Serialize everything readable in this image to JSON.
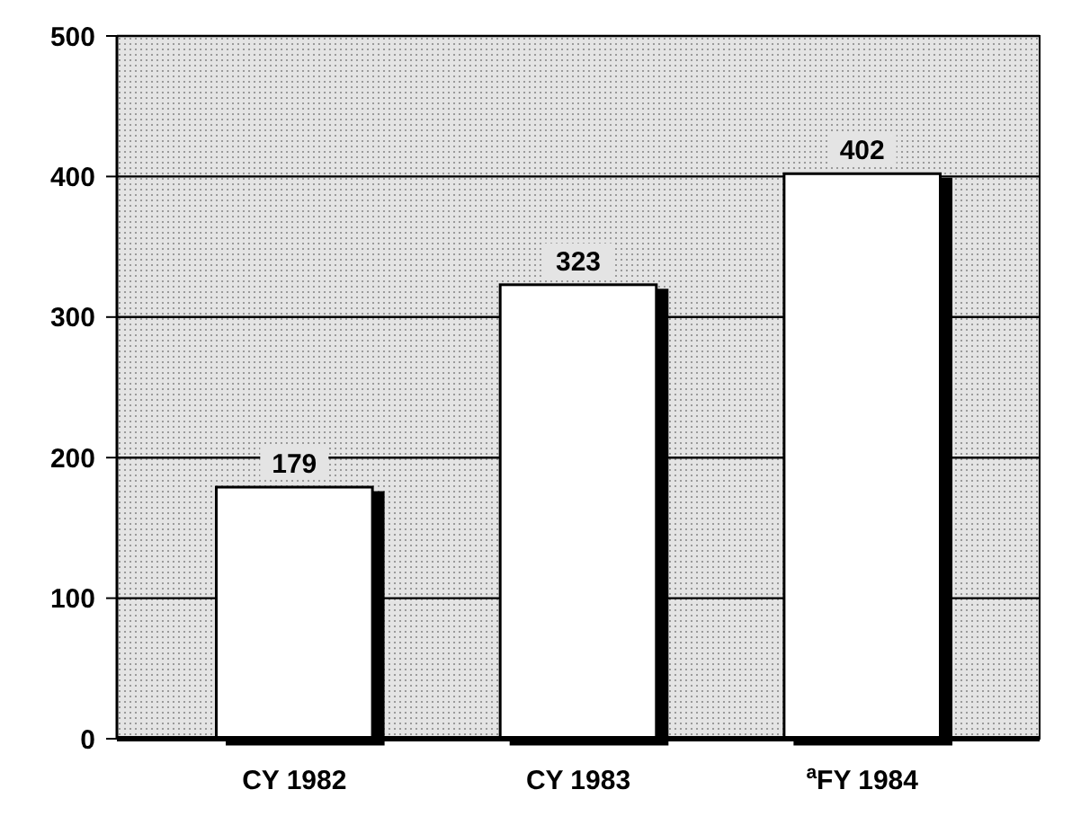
{
  "chart_data": {
    "type": "bar",
    "categories": [
      "CY 1982",
      "CY 1983",
      "$^{a}$FY 1984"
    ],
    "values": [
      179,
      323,
      402
    ],
    "color": "#ffffff",
    "ylim": [
      0,
      500
    ],
    "yticks": [
      0,
      100,
      200,
      300,
      400,
      500
    ],
    "grid": "y",
    "data_labels": true
  }
}
